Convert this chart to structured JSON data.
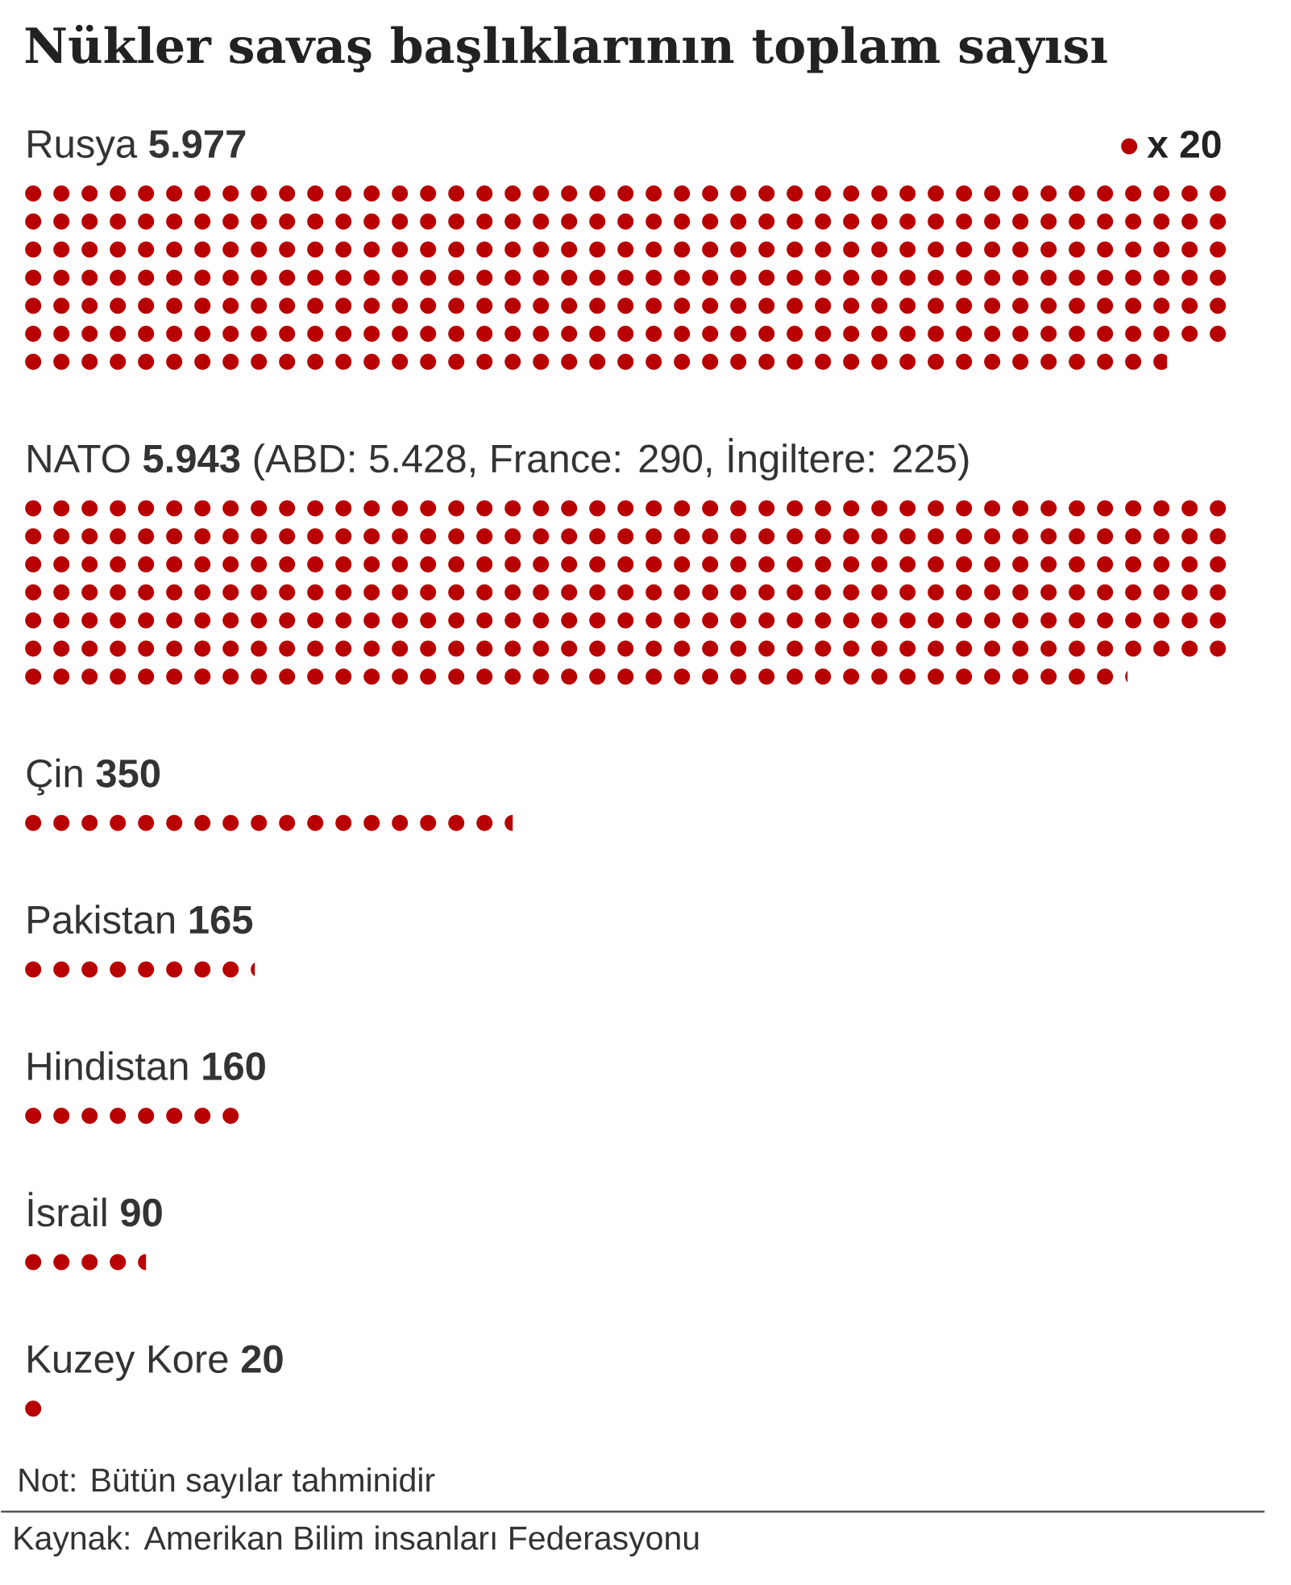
{
  "chart_data": {
    "type": "other",
    "title": "Nükler savaş başlıklarının toplam sayısı",
    "categories": [
      "Rusya",
      "NATO",
      "Çin",
      "Pakistan",
      "Hindistan",
      "İsrail",
      "Kuzey Kore"
    ],
    "series": [
      {
        "name": "x 20",
        "color": "#b80000",
        "values": [
          5977,
          5943,
          350,
          165,
          160,
          90,
          20
        ],
        "value_labels": [
          "5.977",
          "5.943",
          "350",
          "165",
          "160",
          "90",
          "20"
        ]
      }
    ],
    "legend": "top right",
    "annotations": [
      {
        "text": "(ABD: 5.428, France: 290, İngiltere: 225)",
        "y": "NATO"
      },
      "Not: Bütün sayılar tahminidir",
      "Kaynak: Amerikan Bilim insanları Federasyonu"
    ]
  }
}
